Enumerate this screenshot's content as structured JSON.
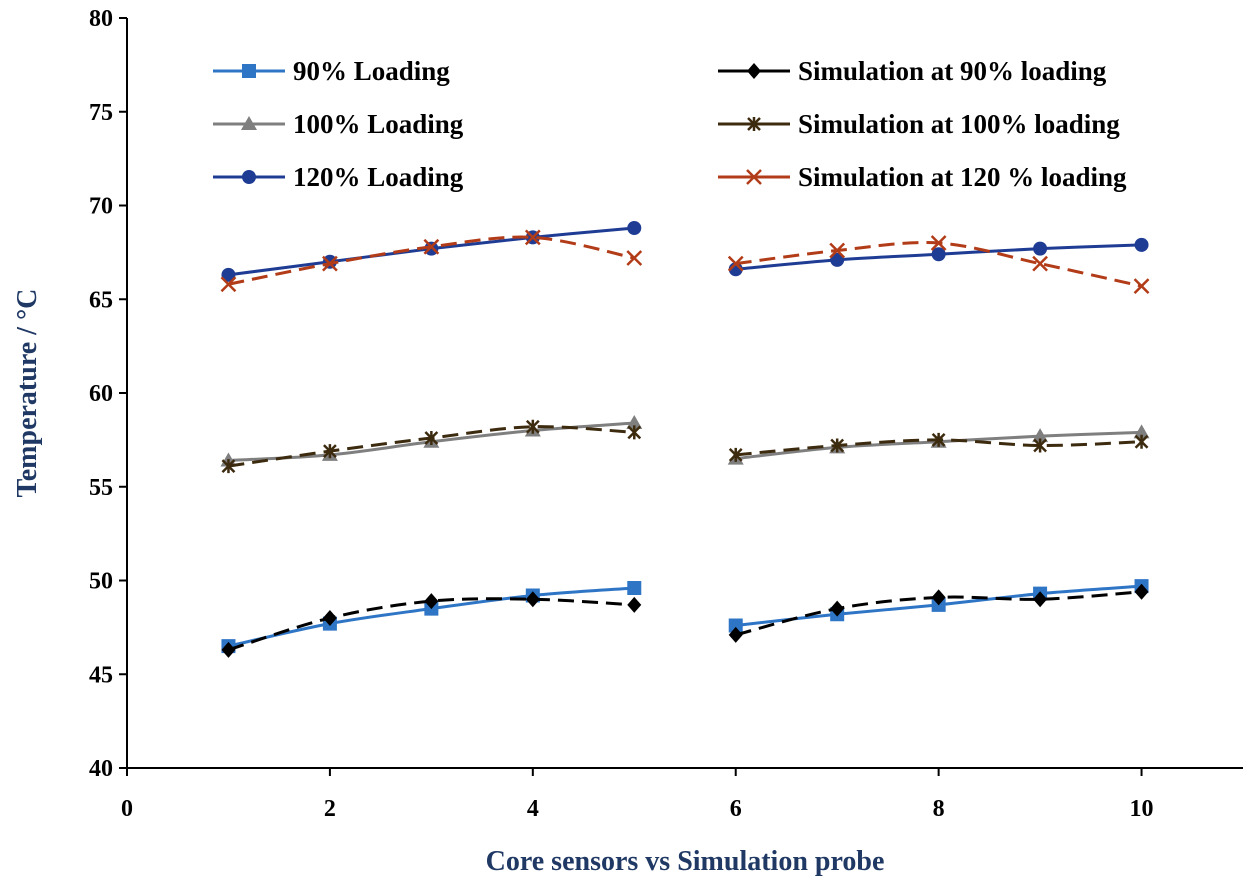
{
  "chart_data": {
    "type": "line",
    "title": "",
    "xlabel": "Core sensors vs Simulation probe",
    "ylabel": "Temperature / °C",
    "xlim": [
      0,
      11
    ],
    "ylim": [
      40,
      80
    ],
    "x_ticks": [
      0,
      2,
      4,
      6,
      8,
      10
    ],
    "y_ticks": [
      40,
      45,
      50,
      55,
      60,
      65,
      70,
      75,
      80
    ],
    "grid": false,
    "legend_position": "top",
    "series": [
      {
        "name": "90% Loading",
        "color": "#2e75c6",
        "marker": "square",
        "dash": "solid",
        "segments": [
          {
            "x": [
              1,
              2,
              3,
              4,
              5
            ],
            "y": [
              46.5,
              47.7,
              48.5,
              49.2,
              49.6
            ]
          },
          {
            "x": [
              6,
              7,
              8,
              9,
              10
            ],
            "y": [
              47.6,
              48.2,
              48.7,
              49.3,
              49.7
            ]
          }
        ]
      },
      {
        "name": "100% Loading",
        "color": "#7f7f7f",
        "marker": "triangle",
        "dash": "solid",
        "segments": [
          {
            "x": [
              1,
              2,
              3,
              4,
              5
            ],
            "y": [
              56.4,
              56.7,
              57.4,
              58.0,
              58.4
            ]
          },
          {
            "x": [
              6,
              7,
              8,
              9,
              10
            ],
            "y": [
              56.5,
              57.1,
              57.4,
              57.7,
              57.9
            ]
          }
        ]
      },
      {
        "name": "120% Loading",
        "color": "#1f3c94",
        "marker": "circle",
        "dash": "solid",
        "segments": [
          {
            "x": [
              1,
              2,
              3,
              4,
              5
            ],
            "y": [
              66.3,
              67.0,
              67.7,
              68.3,
              68.8
            ]
          },
          {
            "x": [
              6,
              7,
              8,
              9,
              10
            ],
            "y": [
              66.6,
              67.1,
              67.4,
              67.7,
              67.9
            ]
          }
        ]
      },
      {
        "name": "Simulation at 90% loading",
        "color": "#000000",
        "marker": "diamond",
        "dash": "dashed",
        "segments": [
          {
            "x": [
              1,
              2,
              3,
              4,
              5
            ],
            "y": [
              46.3,
              48.0,
              48.9,
              49.0,
              48.7
            ]
          },
          {
            "x": [
              6,
              7,
              8,
              9,
              10
            ],
            "y": [
              47.1,
              48.5,
              49.1,
              49.0,
              49.4
            ]
          }
        ]
      },
      {
        "name": "Simulation at 100% loading",
        "color": "#3d2b0f",
        "marker": "star",
        "dash": "dashed",
        "segments": [
          {
            "x": [
              1,
              2,
              3,
              4,
              5
            ],
            "y": [
              56.1,
              56.9,
              57.6,
              58.2,
              57.9
            ]
          },
          {
            "x": [
              6,
              7,
              8,
              9,
              10
            ],
            "y": [
              56.7,
              57.2,
              57.5,
              57.2,
              57.4
            ]
          }
        ]
      },
      {
        "name": "Simulation at 120 % loading",
        "color": "#b23b18",
        "marker": "x",
        "dash": "dashed",
        "segments": [
          {
            "x": [
              1,
              2,
              3,
              4,
              5
            ],
            "y": [
              65.8,
              66.9,
              67.8,
              68.3,
              67.2
            ]
          },
          {
            "x": [
              6,
              7,
              8,
              9,
              10
            ],
            "y": [
              66.9,
              67.6,
              68.0,
              66.9,
              65.7
            ]
          }
        ]
      }
    ]
  }
}
